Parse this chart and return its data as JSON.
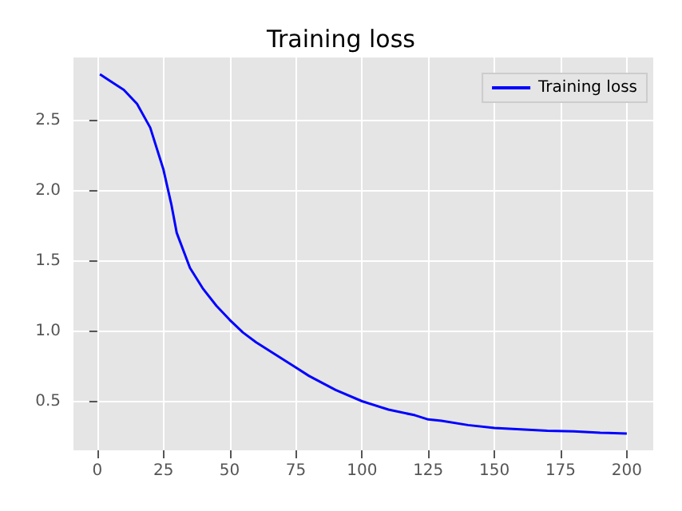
{
  "chart_data": {
    "type": "line",
    "title": "Training loss",
    "x": [
      1,
      5,
      10,
      15,
      20,
      25,
      28,
      30,
      35,
      40,
      45,
      50,
      55,
      60,
      70,
      75,
      80,
      90,
      100,
      110,
      120,
      125,
      130,
      140,
      150,
      160,
      170,
      180,
      190,
      200
    ],
    "series": [
      {
        "name": "Training loss",
        "color": "#0000ff",
        "values": [
          2.83,
          2.78,
          2.72,
          2.62,
          2.45,
          2.15,
          1.9,
          1.7,
          1.45,
          1.3,
          1.18,
          1.08,
          0.99,
          0.92,
          0.8,
          0.74,
          0.68,
          0.58,
          0.5,
          0.44,
          0.4,
          0.37,
          0.36,
          0.33,
          0.31,
          0.3,
          0.29,
          0.285,
          0.275,
          0.27
        ]
      }
    ],
    "xlim": [
      -9,
      210
    ],
    "ylim": [
      0.15,
      2.95
    ],
    "xticks": [
      0,
      25,
      50,
      75,
      100,
      125,
      150,
      175,
      200
    ],
    "yticks": [
      {
        "value": 0.5,
        "label": "0.5"
      },
      {
        "value": 1,
        "label": "1.0"
      },
      {
        "value": 1.5,
        "label": "1.5"
      },
      {
        "value": 2,
        "label": "2.0"
      },
      {
        "value": 2.5,
        "label": "2.5"
      }
    ],
    "grid": true,
    "legend": "top right",
    "marker": "none",
    "line_style": "solid"
  }
}
